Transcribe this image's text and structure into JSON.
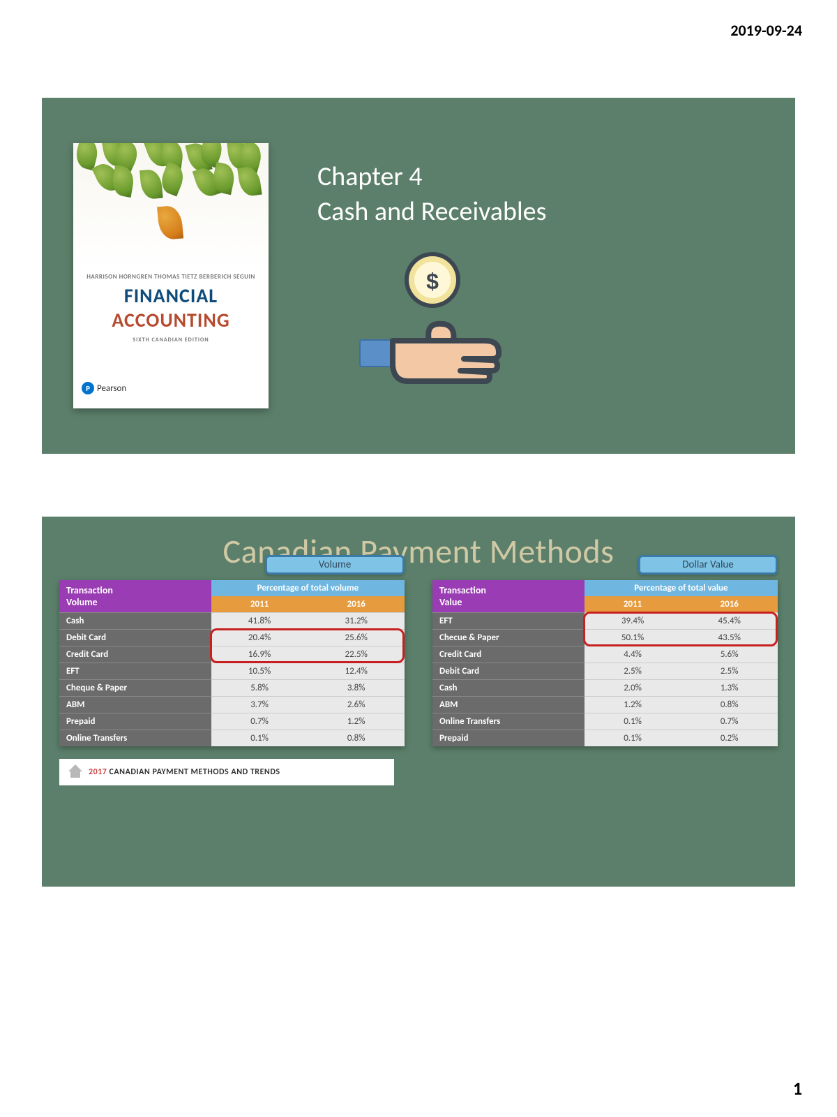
{
  "page": {
    "date": "2019-09-24",
    "number": "1",
    "background": "#ffffff"
  },
  "slide1": {
    "background": "#5b7f6a",
    "book": {
      "authors": "HARRISON  HORNGREN  THOMAS  TIETZ  BERBERICH  SEGUIN",
      "title_line1": "FINANCIAL",
      "title_line2": "ACCOUNTING",
      "edition": "SIXTH CANADIAN EDITION",
      "publisher": "Pearson",
      "title_line1_color": "#0f4b7a",
      "title_line2_color": "#b74a2f"
    },
    "chapter_label": "Chapter 4",
    "chapter_title": "Cash and Receivables"
  },
  "slide2": {
    "title": "Canadian Payment Methods",
    "title_color": "#d1c9a5",
    "tab_left": "Volume",
    "tab_right": "Dollar Value",
    "tab_bg": "#7fc3e6",
    "tab_border": "#3a7aa8",
    "header_purple": "#9a3cb4",
    "header_blue": "#6fb6e0",
    "header_orange": "#e59b3e",
    "row_label_bg": "#6b6b6b",
    "cell_bg": "#e9e9e9",
    "highlight_color": "#c82020",
    "left_table": {
      "row_header_top": "Transaction",
      "row_header_bottom": "Volume",
      "pct_header": "Percentage of total volume",
      "years": [
        "2011",
        "2016"
      ],
      "rows": [
        {
          "label": "Cash",
          "v2011": "41.8%",
          "v2016": "31.2%"
        },
        {
          "label": "Debit Card",
          "v2011": "20.4%",
          "v2016": "25.6%"
        },
        {
          "label": "Credit Card",
          "v2011": "16.9%",
          "v2016": "22.5%"
        },
        {
          "label": "EFT",
          "v2011": "10.5%",
          "v2016": "12.4%"
        },
        {
          "label": "Cheque & Paper",
          "v2011": "5.8%",
          "v2016": "3.8%"
        },
        {
          "label": "ABM",
          "v2011": "3.7%",
          "v2016": "2.6%"
        },
        {
          "label": "Prepaid",
          "v2011": "0.7%",
          "v2016": "1.2%"
        },
        {
          "label": "Online Transfers",
          "v2011": "0.1%",
          "v2016": "0.8%"
        }
      ],
      "highlight_rows": [
        1,
        2
      ]
    },
    "right_table": {
      "row_header_top": "Transaction",
      "row_header_bottom": "Value",
      "pct_header": "Percentage of total value",
      "years": [
        "2011",
        "2016"
      ],
      "rows": [
        {
          "label": "EFT",
          "v2011": "39.4%",
          "v2016": "45.4%"
        },
        {
          "label": "Checue & Paper",
          "v2011": "50.1%",
          "v2016": "43.5%"
        },
        {
          "label": "Credit Card",
          "v2011": "4.4%",
          "v2016": "5.6%"
        },
        {
          "label": "Debit Card",
          "v2011": "2.5%",
          "v2016": "2.5%"
        },
        {
          "label": "Cash",
          "v2011": "2.0%",
          "v2016": "1.3%"
        },
        {
          "label": "ABM",
          "v2011": "1.2%",
          "v2016": "0.8%"
        },
        {
          "label": "Online Transfers",
          "v2011": "0.1%",
          "v2016": "0.7%"
        },
        {
          "label": "Prepaid",
          "v2011": "0.1%",
          "v2016": "0.2%"
        }
      ],
      "highlight_rows": [
        0,
        1
      ]
    },
    "footer_year": "2017",
    "footer_text": "CANADIAN PAYMENT METHODS AND TRENDS"
  }
}
